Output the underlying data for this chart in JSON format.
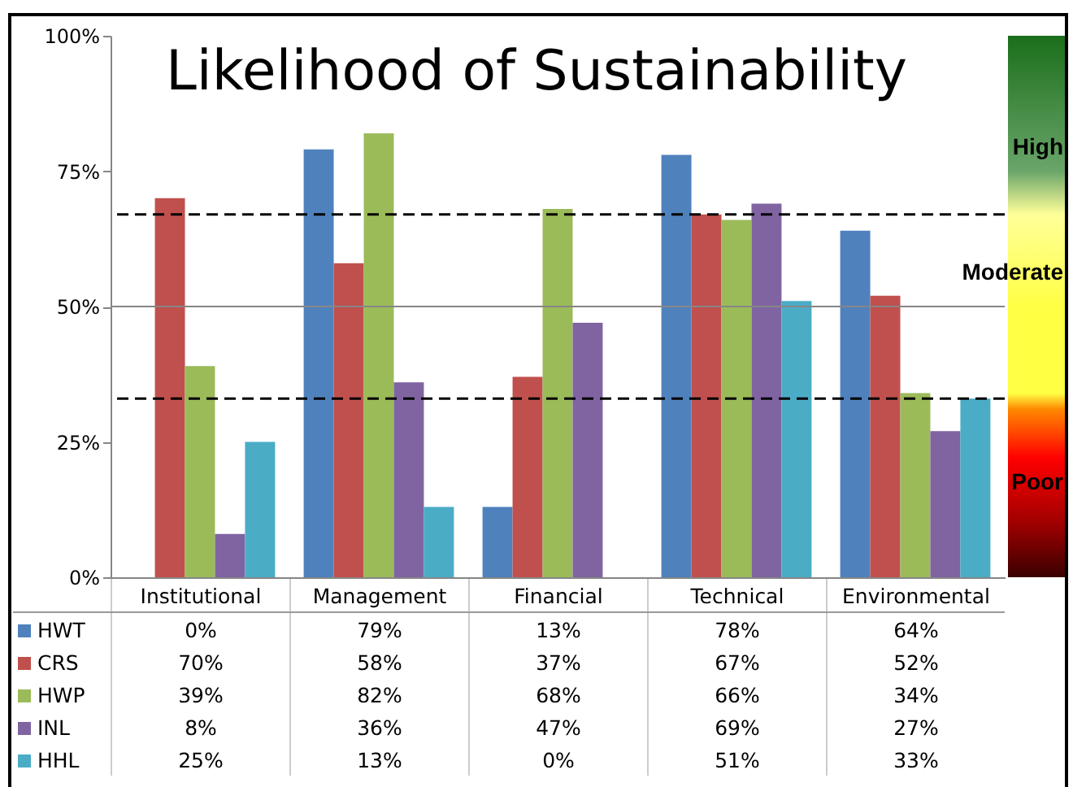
{
  "chart_data": {
    "type": "bar",
    "title": "Likelihood of Sustainability",
    "categories": [
      "Institutional",
      "Management",
      "Financial",
      "Technical",
      "Environmental"
    ],
    "series": [
      {
        "name": "HWT",
        "color": "#4f81bd",
        "values": [
          0,
          79,
          13,
          78,
          64
        ],
        "value_labels": [
          "0%",
          "79%",
          "13%",
          "78%",
          "64%"
        ]
      },
      {
        "name": "CRS",
        "color": "#c0504d",
        "values": [
          70,
          58,
          37,
          67,
          52
        ],
        "value_labels": [
          "70%",
          "58%",
          "37%",
          "67%",
          "52%"
        ]
      },
      {
        "name": "HWP",
        "color": "#9bbb59",
        "values": [
          39,
          82,
          68,
          66,
          34
        ],
        "value_labels": [
          "39%",
          "82%",
          "68%",
          "66%",
          "34%"
        ]
      },
      {
        "name": "INL",
        "color": "#8064a2",
        "values": [
          8,
          36,
          47,
          69,
          27
        ],
        "value_labels": [
          "8%",
          "36%",
          "47%",
          "69%",
          "27%"
        ]
      },
      {
        "name": "HHL",
        "color": "#4bacc6",
        "values": [
          25,
          13,
          0,
          51,
          33
        ],
        "value_labels": [
          "25%",
          "13%",
          "0%",
          "51%",
          "33%"
        ]
      }
    ],
    "ylim": [
      0,
      100
    ],
    "yticks": [
      {
        "value": 0,
        "label": "0%"
      },
      {
        "value": 25,
        "label": "25%"
      },
      {
        "value": 50,
        "label": "50%"
      },
      {
        "value": 75,
        "label": "75%"
      },
      {
        "value": 100,
        "label": "100%"
      }
    ],
    "ref_lines": [
      {
        "axis": "y",
        "value": 50,
        "color": "#868686",
        "line_style": "solid"
      },
      {
        "axis": "y",
        "value": 67,
        "color": "#000000",
        "line_style": "dashed"
      },
      {
        "axis": "y",
        "value": 33,
        "color": "#000000",
        "line_style": "dashed"
      }
    ],
    "annotations": [
      "High",
      "Moderate",
      "Poor"
    ],
    "legend": "bottom"
  }
}
